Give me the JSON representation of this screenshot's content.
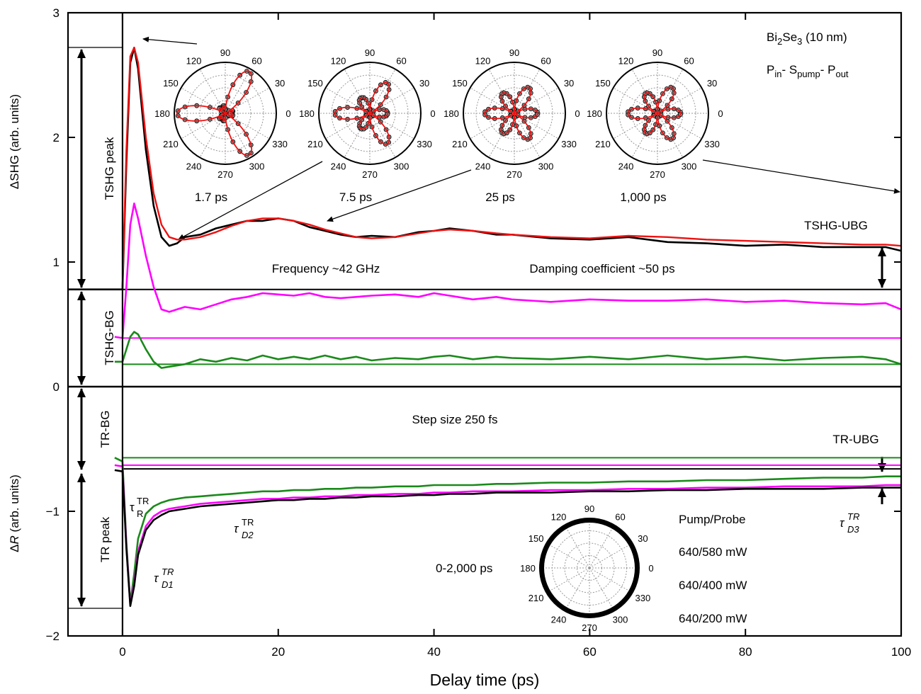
{
  "chart_data": {
    "type": "line",
    "x_label": "Delay time (ps)",
    "y_label": "ΔSHG (arb. units)",
    "y_label_lower": [
      "Δ",
      "R",
      " (arb. units)"
    ],
    "xlim": [
      -7,
      100
    ],
    "xticks": [
      0,
      20,
      40,
      60,
      80,
      100
    ],
    "ylim": [
      -2,
      3
    ],
    "yticks": [
      {
        "value": -2,
        "label": "−2"
      },
      {
        "value": -1,
        "label": "−1"
      },
      0,
      1,
      2,
      3
    ],
    "x": [
      -7,
      -1,
      0,
      0.5,
      1,
      1.5,
      2,
      3,
      4,
      5,
      6,
      7,
      8,
      10,
      12,
      14,
      16,
      18,
      20,
      22,
      24,
      26,
      28,
      30,
      32,
      35,
      38,
      40,
      42,
      45,
      48,
      50,
      55,
      60,
      65,
      70,
      75,
      80,
      85,
      90,
      95,
      98,
      100
    ],
    "series": [
      {
        "name": "640/580 mW",
        "color": "#000000",
        "values": [
          0.78,
          0.78,
          0.78,
          1.8,
          2.6,
          2.72,
          2.55,
          1.9,
          1.45,
          1.2,
          1.13,
          1.15,
          1.2,
          1.22,
          1.27,
          1.3,
          1.33,
          1.33,
          1.35,
          1.33,
          1.28,
          1.25,
          1.22,
          1.2,
          1.21,
          1.2,
          1.24,
          1.25,
          1.27,
          1.25,
          1.22,
          1.22,
          1.19,
          1.18,
          1.2,
          1.16,
          1.15,
          1.13,
          1.14,
          1.12,
          1.12,
          1.12,
          1.09
        ],
        "tr_values": [
          null,
          -0.67,
          -0.68,
          -1.3,
          -1.76,
          -1.6,
          -1.35,
          -1.15,
          -1.07,
          -1.03,
          -1.0,
          -0.99,
          -0.98,
          -0.96,
          -0.95,
          -0.94,
          -0.93,
          -0.92,
          -0.91,
          -0.91,
          -0.9,
          -0.9,
          -0.89,
          -0.89,
          -0.88,
          -0.88,
          -0.87,
          -0.87,
          -0.86,
          -0.86,
          -0.85,
          -0.85,
          -0.85,
          -0.84,
          -0.84,
          -0.83,
          -0.83,
          -0.82,
          -0.82,
          -0.82,
          -0.81,
          -0.81,
          -0.81
        ]
      },
      {
        "name": "640/400 mW",
        "color": "#ff00ff",
        "values": [
          null,
          0.4,
          0.39,
          0.8,
          1.3,
          1.47,
          1.35,
          1.05,
          0.8,
          0.62,
          0.6,
          0.62,
          0.64,
          0.62,
          0.66,
          0.7,
          0.72,
          0.75,
          0.74,
          0.73,
          0.75,
          0.72,
          0.71,
          0.72,
          0.73,
          0.74,
          0.72,
          0.75,
          0.73,
          0.7,
          0.72,
          0.7,
          0.68,
          0.7,
          0.69,
          0.69,
          0.7,
          0.68,
          0.69,
          0.67,
          0.66,
          0.67,
          0.62
        ],
        "tr_values": [
          null,
          -0.63,
          -0.64,
          -1.28,
          -1.75,
          -1.58,
          -1.32,
          -1.12,
          -1.04,
          -1.0,
          -0.98,
          -0.97,
          -0.96,
          -0.94,
          -0.93,
          -0.92,
          -0.91,
          -0.9,
          -0.9,
          -0.89,
          -0.89,
          -0.88,
          -0.88,
          -0.87,
          -0.87,
          -0.86,
          -0.86,
          -0.85,
          -0.85,
          -0.84,
          -0.84,
          -0.84,
          -0.83,
          -0.83,
          -0.82,
          -0.82,
          -0.81,
          -0.81,
          -0.8,
          -0.8,
          -0.8,
          -0.79,
          -0.79
        ]
      },
      {
        "name": "640/200 mW",
        "color": "#1a8a1a",
        "values": [
          null,
          0.2,
          0.2,
          0.3,
          0.4,
          0.44,
          0.42,
          0.3,
          0.2,
          0.15,
          0.16,
          0.17,
          0.18,
          0.22,
          0.2,
          0.23,
          0.21,
          0.25,
          0.22,
          0.24,
          0.22,
          0.25,
          0.22,
          0.24,
          0.21,
          0.23,
          0.22,
          0.24,
          0.25,
          0.22,
          0.24,
          0.23,
          0.22,
          0.24,
          0.22,
          0.25,
          0.22,
          0.24,
          0.21,
          0.23,
          0.24,
          0.22,
          0.18
        ],
        "tr_values": [
          null,
          -0.57,
          -0.6,
          -1.25,
          -1.74,
          -1.5,
          -1.22,
          -1.02,
          -0.96,
          -0.93,
          -0.91,
          -0.9,
          -0.89,
          -0.88,
          -0.87,
          -0.86,
          -0.85,
          -0.84,
          -0.84,
          -0.83,
          -0.83,
          -0.82,
          -0.82,
          -0.81,
          -0.81,
          -0.8,
          -0.8,
          -0.79,
          -0.79,
          -0.79,
          -0.78,
          -0.78,
          -0.77,
          -0.77,
          -0.76,
          -0.76,
          -0.75,
          -0.75,
          -0.74,
          -0.73,
          -0.73,
          -0.72,
          -0.72
        ]
      }
    ],
    "fit": {
      "color": "#ee1111",
      "values": [
        null,
        null,
        0.8,
        1.9,
        2.65,
        2.72,
        2.6,
        2.0,
        1.55,
        1.3,
        1.2,
        1.18,
        1.18,
        1.2,
        1.24,
        1.29,
        1.33,
        1.35,
        1.35,
        1.33,
        1.3,
        1.26,
        1.23,
        1.2,
        1.19,
        1.2,
        1.23,
        1.25,
        1.26,
        1.25,
        1.23,
        1.22,
        1.2,
        1.19,
        1.21,
        1.2,
        1.18,
        1.17,
        1.16,
        1.15,
        1.14,
        1.14,
        1.13
      ]
    },
    "reference_lines": [
      {
        "value": 0.78,
        "color": "#000000"
      },
      {
        "value": 0.39,
        "color": "#ff00ff"
      },
      {
        "value": 0.18,
        "color": "#1a8a1a"
      },
      {
        "value": 0,
        "color": "#000000"
      },
      {
        "value": -0.57,
        "color": "#1a8a1a"
      },
      {
        "value": -0.63,
        "color": "#ff00ff"
      },
      {
        "value": -0.66,
        "color": "#000000"
      }
    ],
    "polar_insets": [
      {
        "label": "1.7 ps"
      },
      {
        "label": "7.5 ps"
      },
      {
        "label": "25 ps"
      },
      {
        "label": "1,000 ps"
      },
      {
        "label": "0-2,000 ps"
      }
    ],
    "angle_ticks": [
      0,
      30,
      60,
      90,
      120,
      150,
      180,
      210,
      240,
      270,
      300,
      330
    ],
    "annotations": {
      "tshg_peak": "TSHG peak",
      "tshg_bg": "TSHG-BG",
      "tr_bg": "TR-BG",
      "tr_peak": "TR peak",
      "tshg_ubg": "TSHG-UBG",
      "tr_ubg": "TR-UBG",
      "frequency": "Frequency ~42 GHz",
      "damping": "Damping coefficient ~50 ps",
      "step": "Step size 250 fs",
      "legend_title": "Pump/Probe",
      "sample": [
        "Bi",
        "2",
        "Se",
        "3",
        " (10 nm)"
      ],
      "geometry": [
        "P",
        "in",
        "- S",
        "pump",
        "- P",
        "out"
      ],
      "tau_r": [
        "τ",
        "R",
        "TR"
      ],
      "tau_d1": [
        "τ",
        "D1",
        "TR"
      ],
      "tau_d2": [
        "τ",
        "D2",
        "TR"
      ],
      "tau_d3": [
        "τ",
        "D3",
        "TR"
      ]
    }
  }
}
